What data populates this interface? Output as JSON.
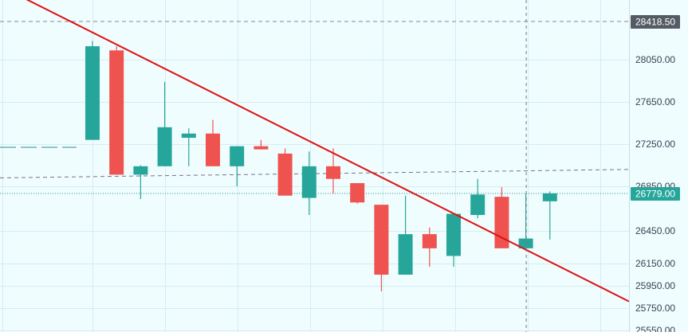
{
  "chart_data": {
    "type": "candlestick",
    "title": "",
    "xlabel": "",
    "ylabel": "",
    "ylim": [
      25550,
      28600
    ],
    "y_ticks": [
      "28050.00",
      "27650.00",
      "27250.00",
      "26850.00",
      "26450.00",
      "26150.00",
      "25950.00",
      "25750.00",
      "25550.00"
    ],
    "grid": true,
    "colors": {
      "up": "#26a69a",
      "down": "#ef5350",
      "trendline": "#e01010",
      "background": "#f0fdff",
      "grid": "#d4edf0",
      "badge": "#555b64"
    },
    "candles": [
      {
        "open": 27290,
        "high": 28230,
        "low": 27290,
        "close": 28180
      },
      {
        "open": 28140,
        "high": 28180,
        "low": 26960,
        "close": 26960
      },
      {
        "open": 26960,
        "high": 27050,
        "low": 26730,
        "close": 27040
      },
      {
        "open": 27040,
        "high": 27840,
        "low": 27040,
        "close": 27410
      },
      {
        "open": 27310,
        "high": 27400,
        "low": 27040,
        "close": 27350
      },
      {
        "open": 27350,
        "high": 27480,
        "low": 27040,
        "close": 27040
      },
      {
        "open": 27040,
        "high": 27230,
        "low": 26850,
        "close": 27230
      },
      {
        "open": 27230,
        "high": 27290,
        "low": 27200,
        "close": 27200
      },
      {
        "open": 27160,
        "high": 27210,
        "low": 26760,
        "close": 26760
      },
      {
        "open": 26740,
        "high": 27180,
        "low": 26590,
        "close": 27040
      },
      {
        "open": 27040,
        "high": 27210,
        "low": 26780,
        "close": 26920
      },
      {
        "open": 26880,
        "high": 26880,
        "low": 26690,
        "close": 26700
      },
      {
        "open": 26680,
        "high": 26680,
        "low": 25900,
        "close": 26050
      },
      {
        "open": 26050,
        "high": 26760,
        "low": 26050,
        "close": 26420
      },
      {
        "open": 26420,
        "high": 26480,
        "low": 26120,
        "close": 26290
      },
      {
        "open": 26220,
        "high": 26600,
        "low": 26120,
        "close": 26600
      },
      {
        "open": 26590,
        "high": 26920,
        "low": 26560,
        "close": 26770
      },
      {
        "open": 26750,
        "high": 26840,
        "low": 26290,
        "close": 26290
      },
      {
        "open": 26290,
        "high": 26780,
        "low": 26270,
        "close": 26380
      },
      {
        "open": 26710,
        "high": 26800,
        "low": 26370,
        "close": 26780
      }
    ],
    "reference_level": {
      "label": "28418.50",
      "value": 28418.5
    },
    "current_price": {
      "label": "26779.00",
      "value": 26779
    },
    "support_line": {
      "from": 26930,
      "to": 27010
    },
    "left_dashed_level": 27220,
    "trendline": {
      "from": 28760,
      "to": 25810
    },
    "crosshair_candle": 18
  }
}
